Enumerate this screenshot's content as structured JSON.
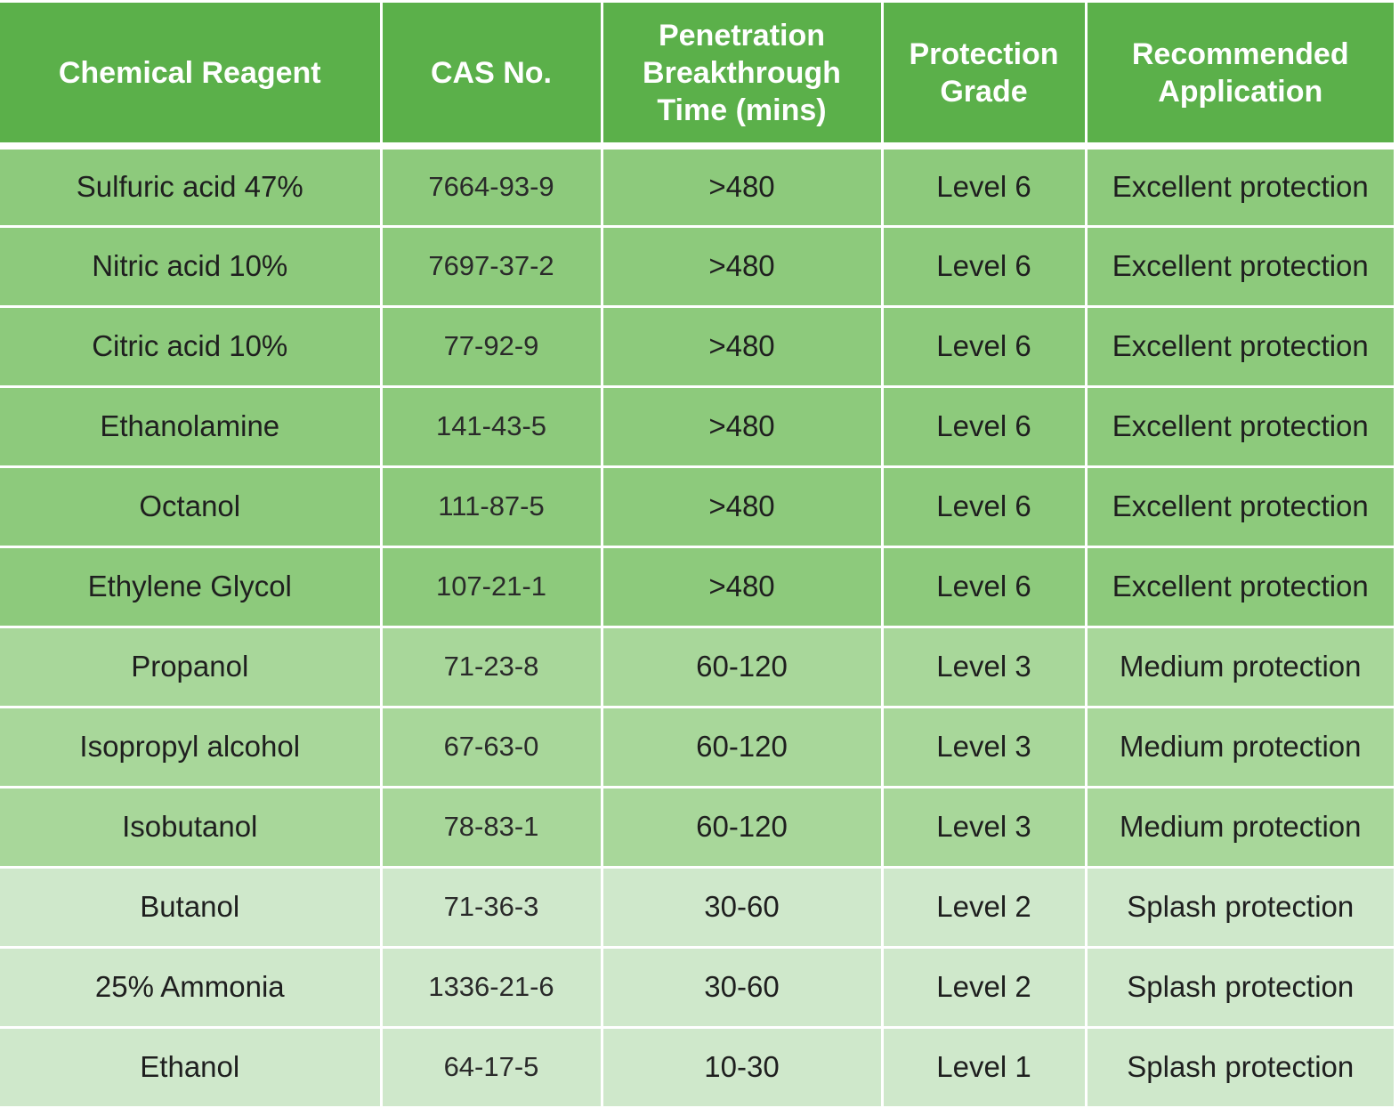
{
  "colors": {
    "header_bg": "#5bb04a",
    "header_text": "#ffffff",
    "level6_bg": "#8dca7c",
    "level3_bg": "#a8d79a",
    "level2_level1_bg": "#cfe8cb",
    "divider": "#ffffff"
  },
  "table": {
    "headers": [
      "Chemical Reagent",
      "CAS No.",
      "Penetration Breakthrough Time (mins)",
      "Protection Grade",
      "Recommended Application"
    ],
    "rows": [
      {
        "reagent": "Sulfuric acid 47%",
        "cas": "7664-93-9",
        "breakthrough": ">480",
        "grade": "Level 6",
        "application": "Excellent protection",
        "tier": "level6"
      },
      {
        "reagent": "Nitric acid 10%",
        "cas": "7697-37-2",
        "breakthrough": ">480",
        "grade": "Level 6",
        "application": "Excellent protection",
        "tier": "level6"
      },
      {
        "reagent": "Citric acid 10%",
        "cas": "77-92-9",
        "breakthrough": ">480",
        "grade": "Level 6",
        "application": "Excellent protection",
        "tier": "level6"
      },
      {
        "reagent": "Ethanolamine",
        "cas": "141-43-5",
        "breakthrough": ">480",
        "grade": "Level 6",
        "application": "Excellent protection",
        "tier": "level6"
      },
      {
        "reagent": "Octanol",
        "cas": "111-87-5",
        "breakthrough": ">480",
        "grade": "Level 6",
        "application": "Excellent protection",
        "tier": "level6"
      },
      {
        "reagent": "Ethylene Glycol",
        "cas": "107-21-1",
        "breakthrough": ">480",
        "grade": "Level 6",
        "application": "Excellent protection",
        "tier": "level6"
      },
      {
        "reagent": "Propanol",
        "cas": "71-23-8",
        "breakthrough": "60-120",
        "grade": "Level 3",
        "application": "Medium protection",
        "tier": "level3"
      },
      {
        "reagent": "Isopropyl alcohol",
        "cas": "67-63-0",
        "breakthrough": "60-120",
        "grade": "Level 3",
        "application": "Medium protection",
        "tier": "level3"
      },
      {
        "reagent": "Isobutanol",
        "cas": "78-83-1",
        "breakthrough": "60-120",
        "grade": "Level 3",
        "application": "Medium protection",
        "tier": "level3"
      },
      {
        "reagent": "Butanol",
        "cas": "71-36-3",
        "breakthrough": "30-60",
        "grade": "Level 2",
        "application": "Splash protection",
        "tier": "level2_level1"
      },
      {
        "reagent": "25% Ammonia",
        "cas": "1336-21-6",
        "breakthrough": "30-60",
        "grade": "Level 2",
        "application": "Splash protection",
        "tier": "level2_level1"
      },
      {
        "reagent": "Ethanol",
        "cas": "64-17-5",
        "breakthrough": "10-30",
        "grade": "Level 1",
        "application": "Splash protection",
        "tier": "level2_level1"
      }
    ]
  }
}
